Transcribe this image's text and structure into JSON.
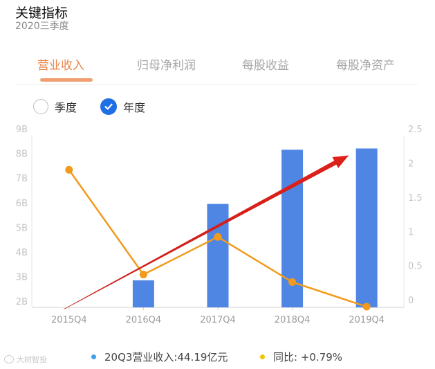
{
  "header": {
    "title": "关键指标",
    "subtitle": "2020三季度"
  },
  "tabs": [
    {
      "label": "营业收入",
      "active": true
    },
    {
      "label": "归母净利润",
      "active": false
    },
    {
      "label": "每股收益",
      "active": false
    },
    {
      "label": "每股净资产",
      "active": false
    }
  ],
  "period_toggle": {
    "quarter_label": "季度",
    "annual_label": "年度",
    "selected": "annual"
  },
  "colors": {
    "bar": "#4f86e4",
    "line": "#f29a1c",
    "accent": "#e8864a",
    "arrow": "#e8211b",
    "legend_revenue": "#3fa0e8",
    "legend_yoy": "#f5c400"
  },
  "chart_data": {
    "type": "bar",
    "categories": [
      "2015Q4",
      "2016Q4",
      "2017Q4",
      "2018Q4",
      "2019Q4"
    ],
    "series": [
      {
        "type": "bar",
        "axis": "left",
        "values": [
          1.75,
          2.85,
          5.95,
          8.15,
          8.2
        ]
      },
      {
        "type": "line",
        "axis": "right",
        "values": [
          1.9,
          0.37,
          0.92,
          0.26,
          -0.1
        ]
      }
    ],
    "y_left": {
      "ylim": [
        1.75,
        9.0
      ],
      "ticks": [
        2,
        3,
        4,
        5,
        6,
        7,
        8,
        9
      ],
      "tick_labels": [
        "2B",
        "3B",
        "4B",
        "5B",
        "6B",
        "7B",
        "8B",
        "9B"
      ]
    },
    "y_right": {
      "ylim": [
        -0.11,
        2.5
      ],
      "ticks": [
        0,
        0.5,
        1,
        1.5,
        2,
        2.5
      ],
      "tick_labels": [
        "0",
        "0.5",
        "1",
        "1.5",
        "2",
        "2.5"
      ]
    },
    "annotation": {
      "type": "trend-arrow"
    },
    "grid": false
  },
  "legend": {
    "revenue": "20Q3营业收入:44.19亿元",
    "yoy": "同比: +0.79%"
  },
  "watermark": "大树智投"
}
